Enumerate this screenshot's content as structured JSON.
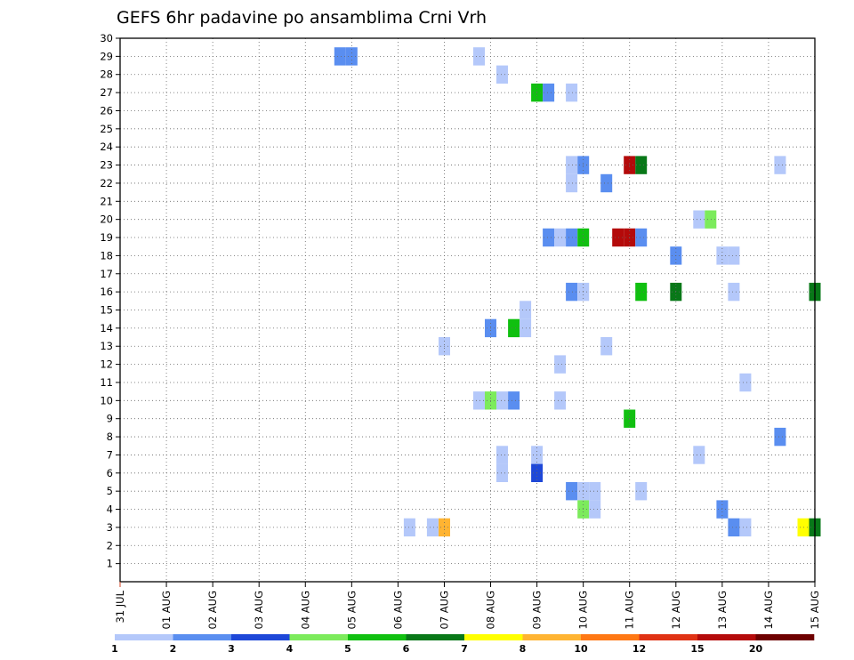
{
  "chart_data": {
    "type": "heatmap",
    "title": "GEFS 6hr padavine po ansamblima Crni Vrh",
    "xlabel": "",
    "ylabel": "",
    "x_tick_labels": [
      "31 JUL",
      "01 AUG",
      "02 AUG",
      "03 AUG",
      "04 AUG",
      "05 AUG",
      "06 AUG",
      "07 AUG",
      "08 AUG",
      "09 AUG",
      "10 AUG",
      "11 AUG",
      "12 AUG",
      "13 AUG",
      "14 AUG",
      "15 AUG"
    ],
    "xlim": [
      0,
      15
    ],
    "ylim": [
      0,
      30
    ],
    "y_ticks": [
      1,
      2,
      3,
      4,
      5,
      6,
      7,
      8,
      9,
      10,
      11,
      12,
      13,
      14,
      15,
      16,
      17,
      18,
      19,
      20,
      21,
      22,
      23,
      24,
      25,
      26,
      27,
      28,
      29,
      30
    ],
    "grid": true,
    "colorbar": {
      "labels": [
        "1",
        "2",
        "3",
        "4",
        "5",
        "6",
        "7",
        "8",
        "10",
        "12",
        "15",
        "20"
      ],
      "colors": [
        "#b4c8fa",
        "#5a8ef0",
        "#1e48d8",
        "#7ceb5c",
        "#10c010",
        "#087818",
        "#ffff00",
        "#ffb432",
        "#ff7814",
        "#e03214",
        "#b40a0a",
        "#6e0000"
      ]
    },
    "cells": [
      {
        "t": 4.75,
        "m": 29,
        "c": 1
      },
      {
        "t": 5.0,
        "m": 29,
        "c": 1
      },
      {
        "t": 7.75,
        "m": 29,
        "c": 0
      },
      {
        "t": 8.25,
        "m": 28,
        "c": 0
      },
      {
        "t": 9.0,
        "m": 27,
        "c": 4
      },
      {
        "t": 9.25,
        "m": 27,
        "c": 1
      },
      {
        "t": 9.75,
        "m": 27,
        "c": 0
      },
      {
        "t": 9.75,
        "m": 23,
        "c": 0
      },
      {
        "t": 10.0,
        "m": 23,
        "c": 1
      },
      {
        "t": 11.0,
        "m": 23,
        "c": 10
      },
      {
        "t": 11.25,
        "m": 23,
        "c": 5
      },
      {
        "t": 14.25,
        "m": 23,
        "c": 0
      },
      {
        "t": 9.75,
        "m": 22,
        "c": 0
      },
      {
        "t": 10.5,
        "m": 22,
        "c": 1
      },
      {
        "t": 12.5,
        "m": 20,
        "c": 0
      },
      {
        "t": 12.75,
        "m": 20,
        "c": 3
      },
      {
        "t": 9.25,
        "m": 19,
        "c": 1
      },
      {
        "t": 9.5,
        "m": 19,
        "c": 0
      },
      {
        "t": 9.75,
        "m": 19,
        "c": 1
      },
      {
        "t": 10.0,
        "m": 19,
        "c": 4
      },
      {
        "t": 10.75,
        "m": 19,
        "c": 10
      },
      {
        "t": 11.0,
        "m": 19,
        "c": 10
      },
      {
        "t": 11.25,
        "m": 19,
        "c": 1
      },
      {
        "t": 12.0,
        "m": 18,
        "c": 1
      },
      {
        "t": 13.0,
        "m": 18,
        "c": 0
      },
      {
        "t": 13.25,
        "m": 18,
        "c": 0
      },
      {
        "t": 9.75,
        "m": 16,
        "c": 1
      },
      {
        "t": 10.0,
        "m": 16,
        "c": 0
      },
      {
        "t": 11.25,
        "m": 16,
        "c": 4
      },
      {
        "t": 12.0,
        "m": 16,
        "c": 5
      },
      {
        "t": 13.25,
        "m": 16,
        "c": 0
      },
      {
        "t": 15.0,
        "m": 16,
        "c": 5
      },
      {
        "t": 8.75,
        "m": 15,
        "c": 0
      },
      {
        "t": 8.0,
        "m": 14,
        "c": 1
      },
      {
        "t": 8.5,
        "m": 14,
        "c": 4
      },
      {
        "t": 8.75,
        "m": 14,
        "c": 0
      },
      {
        "t": 7.0,
        "m": 13,
        "c": 0
      },
      {
        "t": 10.5,
        "m": 13,
        "c": 0
      },
      {
        "t": 9.5,
        "m": 12,
        "c": 0
      },
      {
        "t": 13.5,
        "m": 11,
        "c": 0
      },
      {
        "t": 7.75,
        "m": 10,
        "c": 0
      },
      {
        "t": 8.0,
        "m": 10,
        "c": 3
      },
      {
        "t": 8.25,
        "m": 10,
        "c": 0
      },
      {
        "t": 8.5,
        "m": 10,
        "c": 1
      },
      {
        "t": 9.5,
        "m": 10,
        "c": 0
      },
      {
        "t": 11.0,
        "m": 9,
        "c": 4
      },
      {
        "t": 14.25,
        "m": 8,
        "c": 1
      },
      {
        "t": 8.25,
        "m": 7,
        "c": 0
      },
      {
        "t": 9.0,
        "m": 7,
        "c": 0
      },
      {
        "t": 12.5,
        "m": 7,
        "c": 0
      },
      {
        "t": 8.25,
        "m": 6,
        "c": 0
      },
      {
        "t": 9.0,
        "m": 6,
        "c": 2
      },
      {
        "t": 9.75,
        "m": 5,
        "c": 1
      },
      {
        "t": 10.0,
        "m": 5,
        "c": 0
      },
      {
        "t": 10.25,
        "m": 5,
        "c": 0
      },
      {
        "t": 11.25,
        "m": 5,
        "c": 0
      },
      {
        "t": 10.0,
        "m": 4,
        "c": 3
      },
      {
        "t": 10.25,
        "m": 4,
        "c": 0
      },
      {
        "t": 13.0,
        "m": 4,
        "c": 1
      },
      {
        "t": 6.25,
        "m": 3,
        "c": 0
      },
      {
        "t": 6.75,
        "m": 3,
        "c": 0
      },
      {
        "t": 7.0,
        "m": 3,
        "c": 7
      },
      {
        "t": 13.25,
        "m": 3,
        "c": 1
      },
      {
        "t": 13.5,
        "m": 3,
        "c": 0
      },
      {
        "t": 14.75,
        "m": 3,
        "c": 6
      },
      {
        "t": 15.0,
        "m": 3,
        "c": 5
      }
    ]
  }
}
